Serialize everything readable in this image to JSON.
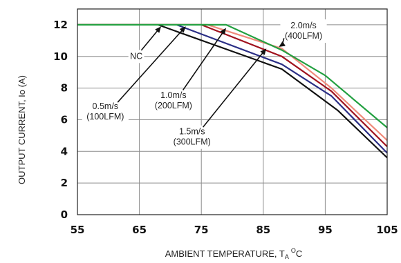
{
  "chart_data": {
    "type": "line",
    "title": "",
    "xlabel": {
      "main": "AMBIENT TEMPERATURE, T",
      "sub": "A",
      "sup": "O",
      "unit": "C"
    },
    "ylabel": "OUTPUT CURRENT, Io  (A)",
    "xlim": [
      55,
      105
    ],
    "ylim": [
      0,
      13
    ],
    "xticks": [
      "55",
      "65",
      "75",
      "85",
      "95",
      "105"
    ],
    "yticks": [
      "0",
      "2",
      "4",
      "6",
      "8",
      "10",
      "12"
    ],
    "grid": true,
    "series": [
      {
        "name": "NC",
        "color": "#111111",
        "points": [
          [
            55,
            12
          ],
          [
            68,
            12
          ],
          [
            88,
            9.2
          ],
          [
            97,
            6.6
          ],
          [
            105,
            3.6
          ]
        ]
      },
      {
        "name": "0.5m/s (100LFM)",
        "color": "#2b2f86",
        "points": [
          [
            55,
            12
          ],
          [
            71,
            12
          ],
          [
            88,
            9.5
          ],
          [
            96,
            7.5
          ],
          [
            105,
            3.9
          ]
        ]
      },
      {
        "name": "1.0m/s (200LFM)",
        "color": "#a0121e",
        "points": [
          [
            55,
            12
          ],
          [
            75,
            12
          ],
          [
            88,
            10.0
          ],
          [
            96,
            7.8
          ],
          [
            105,
            4.3
          ]
        ]
      },
      {
        "name": "1.5m/s (300LFM)",
        "color": "#f08a7a",
        "points": [
          [
            55,
            12
          ],
          [
            76,
            12
          ],
          [
            88,
            10.5
          ],
          [
            96,
            8.0
          ],
          [
            105,
            4.7
          ]
        ]
      },
      {
        "name": "2.0m/s (400LFM)",
        "color": "#22a040",
        "points": [
          [
            55,
            12
          ],
          [
            79,
            12
          ],
          [
            88,
            10.4
          ],
          [
            95,
            8.8
          ],
          [
            105,
            5.5
          ]
        ]
      }
    ],
    "annotations": [
      {
        "lines": [
          "NC"
        ],
        "x": 64.5,
        "y": 10.0,
        "arrow_to": [
          68.5,
          11.9
        ]
      },
      {
        "lines": [
          "0.5m/s",
          "(100LFM)"
        ],
        "x": 59.5,
        "y": 6.5,
        "arrow_to": [
          72.5,
          11.9
        ]
      },
      {
        "lines": [
          "1.0m/s",
          "(200LFM)"
        ],
        "x": 70.5,
        "y": 7.2,
        "arrow_to": [
          79.0,
          11.8
        ]
      },
      {
        "lines": [
          "1.5m/s",
          "(300LFM)"
        ],
        "x": 73.5,
        "y": 4.9,
        "arrow_to": [
          85.5,
          10.5
        ]
      },
      {
        "lines": [
          "2.0m/s",
          "(400LFM)"
        ],
        "x": 91.5,
        "y": 11.6,
        "arrow_to": [
          87.5,
          10.6
        ]
      }
    ]
  }
}
